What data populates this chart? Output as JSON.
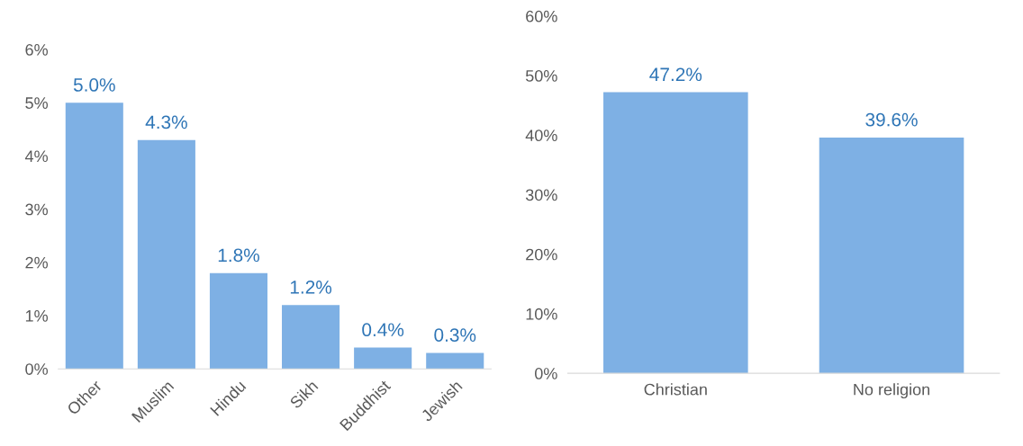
{
  "chart_data": [
    {
      "type": "bar",
      "categories": [
        "Other",
        "Muslim",
        "Hindu",
        "Sikh",
        "Buddhist",
        "Jewish"
      ],
      "values": [
        5.0,
        4.3,
        1.8,
        1.2,
        0.4,
        0.3
      ],
      "value_labels": [
        "5.0%",
        "4.3%",
        "1.8%",
        "1.2%",
        "0.4%",
        "0.3%"
      ],
      "color": "#7eb0e4",
      "ylim": [
        0,
        6
      ],
      "yticks": [
        {
          "value": 0,
          "label": "0%"
        },
        {
          "value": 1,
          "label": "1%"
        },
        {
          "value": 2,
          "label": "2%"
        },
        {
          "value": 3,
          "label": "3%"
        },
        {
          "value": 4,
          "label": "4%"
        },
        {
          "value": 5,
          "label": "5%"
        },
        {
          "value": 6,
          "label": "6%"
        }
      ],
      "grid": false,
      "legend": false
    },
    {
      "type": "bar",
      "categories": [
        "Christian",
        "No religion"
      ],
      "values": [
        47.2,
        39.6
      ],
      "value_labels": [
        "47.2%",
        "39.6%"
      ],
      "color": "#7eb0e4",
      "ylim": [
        0,
        60
      ],
      "yticks": [
        {
          "value": 0,
          "label": "0%"
        },
        {
          "value": 10,
          "label": "10%"
        },
        {
          "value": 20,
          "label": "20%"
        },
        {
          "value": 30,
          "label": "30%"
        },
        {
          "value": 40,
          "label": "40%"
        },
        {
          "value": 50,
          "label": "50%"
        },
        {
          "value": 60,
          "label": "60%"
        }
      ],
      "grid": false,
      "legend": false
    }
  ]
}
